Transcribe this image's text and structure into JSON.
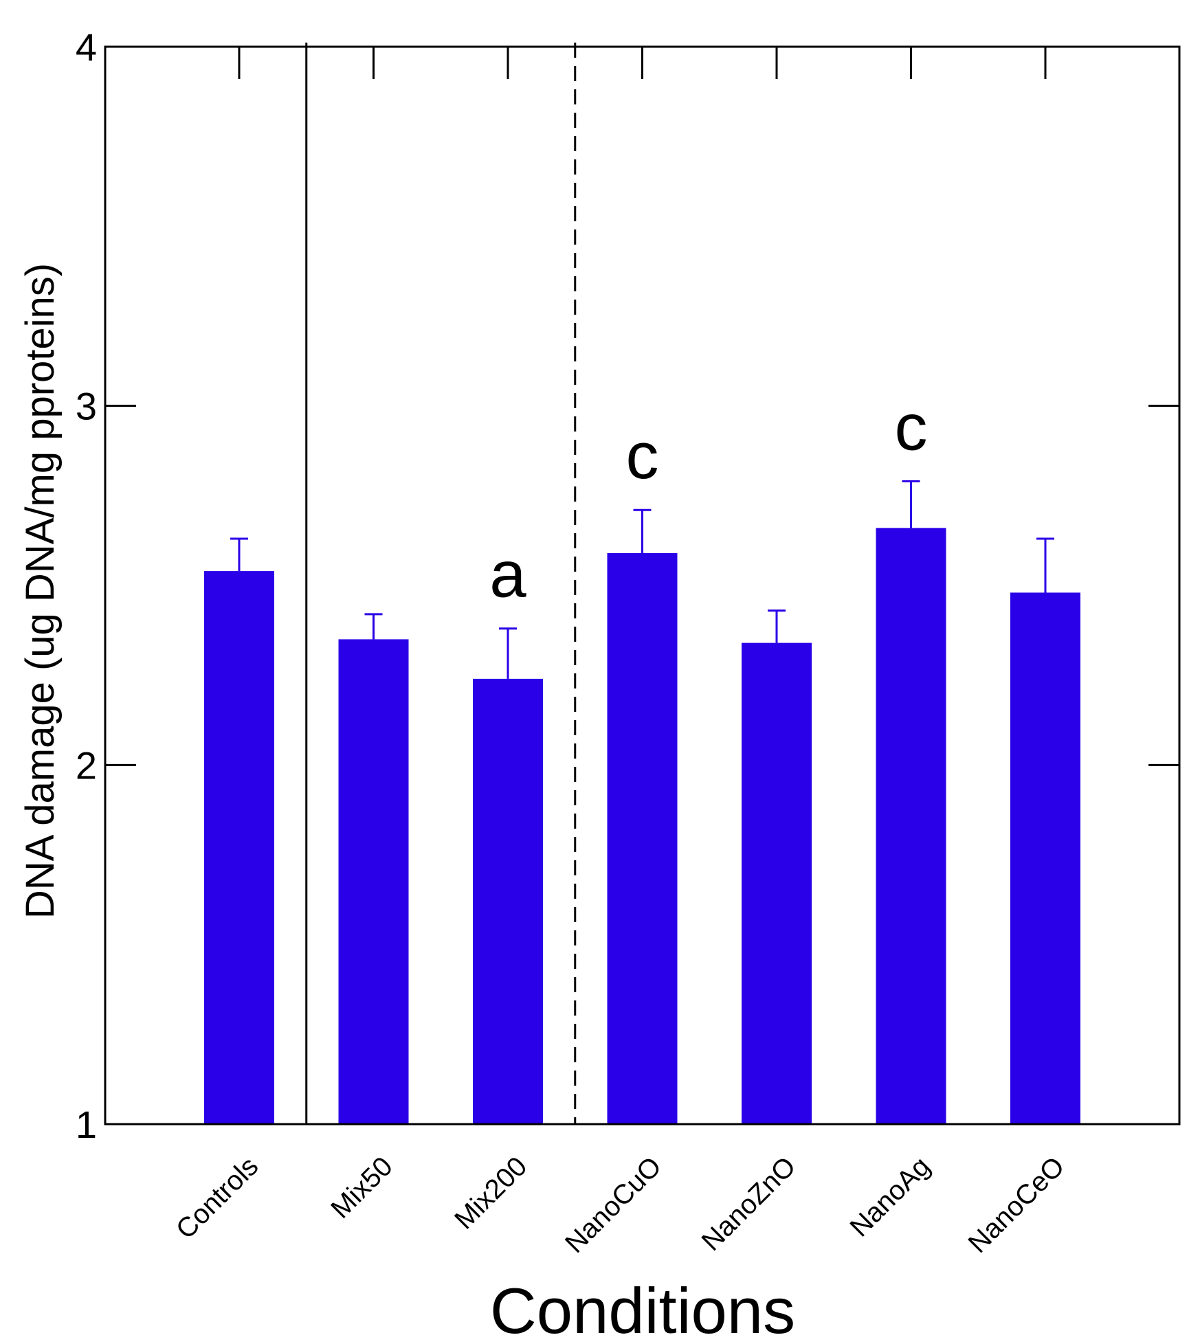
{
  "chart_data": {
    "type": "bar",
    "title": "",
    "xlabel": "Conditions",
    "ylabel": "DNA damage (ug DNA/mg pproteins)",
    "ylim": [
      1,
      4
    ],
    "yticks": [
      1,
      2,
      3,
      4
    ],
    "ytick_labels": [
      "1",
      "2",
      "3",
      "4"
    ],
    "categories": [
      "Controls",
      "Mix50",
      "Mix200",
      "NanoCuO",
      "NanoZnO",
      "NanoAg",
      "NanoCeO"
    ],
    "values": [
      2.54,
      2.35,
      2.24,
      2.59,
      2.34,
      2.66,
      2.48
    ],
    "errors": [
      0.09,
      0.07,
      0.14,
      0.12,
      0.09,
      0.13,
      0.15
    ],
    "annotations": [
      "",
      "",
      "a",
      "c",
      "",
      "c",
      ""
    ],
    "bar_color": "#2a00e8",
    "error_color": "#2a00e8",
    "axis_color": "#000000",
    "separators": [
      {
        "after_category": "Controls",
        "style": "solid"
      },
      {
        "after_category": "Mix200",
        "style": "dashed"
      }
    ],
    "grid": false,
    "legend": "none"
  }
}
